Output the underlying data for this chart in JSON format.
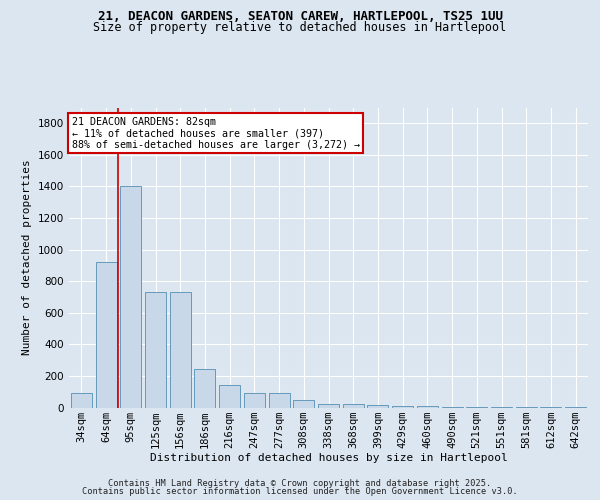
{
  "title1": "21, DEACON GARDENS, SEATON CAREW, HARTLEPOOL, TS25 1UU",
  "title2": "Size of property relative to detached houses in Hartlepool",
  "xlabel": "Distribution of detached houses by size in Hartlepool",
  "ylabel": "Number of detached properties",
  "bar_labels": [
    "34sqm",
    "64sqm",
    "95sqm",
    "125sqm",
    "156sqm",
    "186sqm",
    "216sqm",
    "247sqm",
    "277sqm",
    "308sqm",
    "338sqm",
    "368sqm",
    "399sqm",
    "429sqm",
    "460sqm",
    "490sqm",
    "521sqm",
    "551sqm",
    "581sqm",
    "612sqm",
    "642sqm"
  ],
  "bar_values": [
    90,
    920,
    1400,
    730,
    730,
    245,
    145,
    90,
    90,
    50,
    25,
    25,
    15,
    10,
    8,
    5,
    5,
    5,
    5,
    3,
    5
  ],
  "bar_color": "#c8d8e8",
  "bar_edge_color": "#6699bb",
  "ylim": [
    0,
    1900
  ],
  "yticks": [
    0,
    200,
    400,
    600,
    800,
    1000,
    1200,
    1400,
    1600,
    1800
  ],
  "vline_x": 1.5,
  "vline_color": "#cc0000",
  "annotation_text": "21 DEACON GARDENS: 82sqm\n← 11% of detached houses are smaller (397)\n88% of semi-detached houses are larger (3,272) →",
  "annotation_box_color": "#ffffff",
  "annotation_box_edge_color": "#cc0000",
  "fig_bg_color": "#dce6f0",
  "plot_bg_color": "#dce6f0",
  "footer1": "Contains HM Land Registry data © Crown copyright and database right 2025.",
  "footer2": "Contains public sector information licensed under the Open Government Licence v3.0.",
  "title1_fontsize": 9,
  "title2_fontsize": 8.5,
  "ylabel_fontsize": 8,
  "xlabel_fontsize": 8,
  "tick_fontsize": 7.5,
  "footer_fontsize": 6.2
}
